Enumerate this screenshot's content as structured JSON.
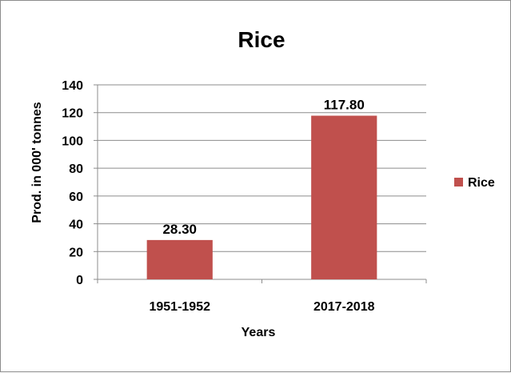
{
  "chart_data": {
    "type": "bar",
    "title": "Rice",
    "xlabel": "Years",
    "ylabel": "Prod. in 000' tonnes",
    "categories": [
      "1951-1952",
      "2017-2018"
    ],
    "series": [
      {
        "name": "Rice",
        "values": [
          28.3,
          117.8
        ],
        "labels": [
          "28.30",
          "117.80"
        ],
        "color": "#c0504d"
      }
    ],
    "ylim": [
      0,
      140
    ],
    "yticks": [
      "0",
      "20",
      "40",
      "60",
      "80",
      "100",
      "120",
      "140"
    ],
    "ytick_values": [
      0,
      20,
      40,
      60,
      80,
      100,
      120,
      140
    ],
    "grid": true,
    "gridline_color": "#8c8c8c",
    "legend_position": "right"
  }
}
